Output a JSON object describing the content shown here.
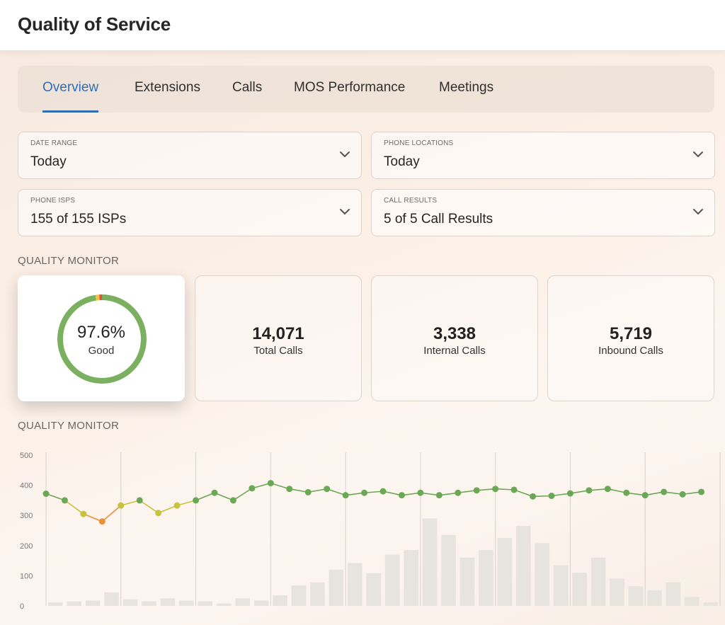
{
  "header": {
    "title": "Quality of Service"
  },
  "tabs": [
    {
      "label": "Overview",
      "active": true
    },
    {
      "label": "Extensions",
      "active": false
    },
    {
      "label": "Calls",
      "active": false
    },
    {
      "label": "MOS Performance",
      "active": false
    },
    {
      "label": "Meetings",
      "active": false
    }
  ],
  "filters": {
    "date_range": {
      "label": "DATE RANGE",
      "value": "Today"
    },
    "phone_locations": {
      "label": "PHONE LOCATIONS",
      "value": "Today"
    },
    "phone_isps": {
      "label": "PHONE ISPS",
      "value": "155 of 155 ISPs"
    },
    "call_results": {
      "label": "CALL RESULTS",
      "value": "5 of 5 Call Results"
    }
  },
  "quality_monitor": {
    "section_label": "QUALITY MONITOR",
    "quality": {
      "percent": "97.6%",
      "label": "Good",
      "good_fraction": 0.976,
      "fair_fraction": 0.014,
      "poor_fraction": 0.01
    },
    "total_calls": {
      "value": "14,071",
      "label": "Total Calls"
    },
    "internal_calls": {
      "value": "3,338",
      "label": "Internal Calls"
    },
    "inbound_calls": {
      "value": "5,719",
      "label": "Inbound Calls"
    }
  },
  "chart_section_label": "QUALITY MONITOR",
  "colors": {
    "accent": "#2f6db5",
    "good": "#7ab05f",
    "fair": "#efc43a",
    "poor": "#e0523a",
    "line_green": "#6aa855",
    "line_yellow": "#c9c23e",
    "line_orange": "#e8913a",
    "bar": "#e7e4de"
  },
  "chart_data": {
    "type": "bar",
    "ylim": [
      0,
      500
    ],
    "yticks": [
      "0",
      "100",
      "200",
      "300",
      "400",
      "500"
    ],
    "grid": "vertical",
    "series": [
      {
        "type": "bar",
        "values": [
          12,
          15,
          18,
          45,
          22,
          15,
          25,
          18,
          15,
          8,
          25,
          18,
          35,
          68,
          78,
          120,
          142,
          108,
          170,
          185,
          290,
          235,
          160,
          185,
          225,
          265,
          208,
          135,
          110,
          160,
          90,
          65,
          52,
          78,
          30,
          12
        ]
      },
      {
        "type": "line",
        "values": [
          372,
          350,
          305,
          280,
          333,
          350,
          308,
          333,
          350,
          375,
          350,
          390,
          407,
          388,
          377,
          388,
          367,
          375,
          380,
          367,
          375,
          367,
          375,
          383,
          388,
          385,
          363,
          365,
          373,
          383,
          388,
          375,
          367,
          378,
          370,
          378
        ]
      }
    ]
  }
}
